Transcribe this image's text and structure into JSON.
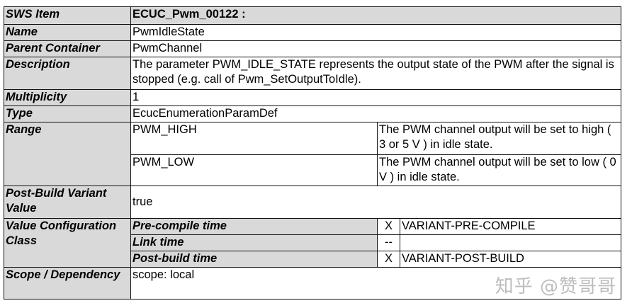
{
  "sws_item": {
    "label": "SWS Item",
    "value": "ECUC_Pwm_00122 :"
  },
  "name": {
    "label": "Name",
    "value": "PwmIdleState"
  },
  "parent_container": {
    "label": "Parent Container",
    "value": "PwmChannel"
  },
  "description": {
    "label": "Description",
    "value": "The parameter PWM_IDLE_STATE represents the output state of the PWM after the signal is stopped (e.g. call of Pwm_SetOutputToIdle)."
  },
  "multiplicity": {
    "label": "Multiplicity",
    "value": "1"
  },
  "type": {
    "label": "Type",
    "value": "EcucEnumerationParamDef"
  },
  "range": {
    "label": "Range",
    "items": [
      {
        "value": "PWM_HIGH",
        "desc": "The PWM channel output will be set to high ( 3 or 5 V ) in idle state."
      },
      {
        "value": "PWM_LOW",
        "desc": "The PWM channel output will be set to low ( 0 V ) in idle state."
      }
    ]
  },
  "post_build_variant": {
    "label": "Post-Build Variant Value",
    "value": "true"
  },
  "value_config": {
    "label": "Value Configuration Class",
    "rows": [
      {
        "time": "Pre-compile time",
        "mark": "X",
        "variant": "VARIANT-PRE-COMPILE"
      },
      {
        "time": "Link time",
        "mark": "--",
        "variant": ""
      },
      {
        "time": "Post-build time",
        "mark": "X",
        "variant": "VARIANT-POST-BUILD"
      }
    ]
  },
  "scope": {
    "label": "Scope / Dependency",
    "value": "scope: local"
  },
  "watermark": "知乎 @赞哥哥"
}
